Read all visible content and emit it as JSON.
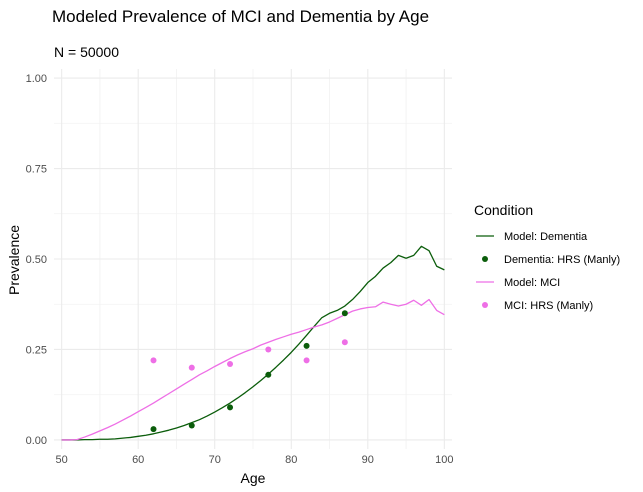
{
  "chart_data": {
    "type": "line",
    "title": "Modeled Prevalence of MCI and Dementia by Age",
    "subtitle": "N = 50000",
    "xlabel": "Age",
    "ylabel": "Prevalence",
    "xlim": [
      49,
      101
    ],
    "ylim": [
      -0.025,
      1.025
    ],
    "x_ticks": [
      50,
      60,
      70,
      80,
      90,
      100
    ],
    "y_ticks": [
      0.0,
      0.25,
      0.5,
      0.75,
      1.0
    ],
    "x_tick_labels": [
      "50",
      "60",
      "70",
      "80",
      "90",
      "100"
    ],
    "y_tick_labels": [
      "0.00",
      "0.25",
      "0.50",
      "0.75",
      "1.00"
    ],
    "grid": true,
    "legend": {
      "title": "Condition",
      "placement": "right",
      "entries": [
        {
          "label": "Model: Dementia",
          "kind": "line",
          "color": "#0b5d0b"
        },
        {
          "label": "Dementia: HRS (Manly)",
          "kind": "point",
          "color": "#0b5d0b"
        },
        {
          "label": "Model: MCI",
          "kind": "line",
          "color": "#ee6fe6"
        },
        {
          "label": "MCI: HRS (Manly)",
          "kind": "point",
          "color": "#ee6fe6"
        }
      ]
    },
    "series": [
      {
        "name": "Model: Dementia",
        "kind": "line",
        "color": "#0b5d0b",
        "x": [
          50,
          51,
          52,
          53,
          54,
          55,
          56,
          57,
          58,
          59,
          60,
          61,
          62,
          63,
          64,
          65,
          66,
          67,
          68,
          69,
          70,
          71,
          72,
          73,
          74,
          75,
          76,
          77,
          78,
          79,
          80,
          81,
          82,
          83,
          84,
          85,
          86,
          87,
          88,
          89,
          90,
          91,
          92,
          93,
          94,
          95,
          96,
          97,
          98,
          99,
          100
        ],
        "y": [
          0.0,
          0.0,
          0.0,
          0.001,
          0.001,
          0.002,
          0.002,
          0.003,
          0.005,
          0.007,
          0.01,
          0.013,
          0.017,
          0.022,
          0.027,
          0.033,
          0.04,
          0.048,
          0.056,
          0.066,
          0.077,
          0.089,
          0.102,
          0.116,
          0.131,
          0.147,
          0.164,
          0.182,
          0.201,
          0.221,
          0.242,
          0.265,
          0.289,
          0.314,
          0.338,
          0.35,
          0.358,
          0.37,
          0.388,
          0.41,
          0.435,
          0.452,
          0.475,
          0.49,
          0.51,
          0.502,
          0.51,
          0.535,
          0.523,
          0.48,
          0.47
        ]
      },
      {
        "name": "Dementia: HRS (Manly)",
        "kind": "point",
        "color": "#0b5d0b",
        "x": [
          62,
          67,
          72,
          77,
          82,
          87
        ],
        "y": [
          0.03,
          0.04,
          0.09,
          0.18,
          0.26,
          0.35
        ]
      },
      {
        "name": "Model: MCI",
        "kind": "line",
        "color": "#ee6fe6",
        "x": [
          50,
          51,
          52,
          53,
          54,
          55,
          56,
          57,
          58,
          59,
          60,
          61,
          62,
          63,
          64,
          65,
          66,
          67,
          68,
          69,
          70,
          71,
          72,
          73,
          74,
          75,
          76,
          77,
          78,
          79,
          80,
          81,
          82,
          83,
          84,
          85,
          86,
          87,
          88,
          89,
          90,
          91,
          92,
          93,
          94,
          95,
          96,
          97,
          98,
          99,
          100
        ],
        "y": [
          0.0,
          0.0,
          0.001,
          0.008,
          0.016,
          0.025,
          0.034,
          0.044,
          0.055,
          0.066,
          0.078,
          0.09,
          0.102,
          0.115,
          0.128,
          0.141,
          0.154,
          0.167,
          0.18,
          0.191,
          0.203,
          0.214,
          0.225,
          0.235,
          0.244,
          0.252,
          0.262,
          0.27,
          0.278,
          0.285,
          0.292,
          0.298,
          0.305,
          0.312,
          0.318,
          0.326,
          0.336,
          0.346,
          0.356,
          0.362,
          0.366,
          0.368,
          0.381,
          0.375,
          0.37,
          0.375,
          0.386,
          0.372,
          0.388,
          0.358,
          0.346
        ]
      },
      {
        "name": "MCI: HRS (Manly)",
        "kind": "point",
        "color": "#ee6fe6",
        "x": [
          62,
          67,
          72,
          77,
          82,
          87
        ],
        "y": [
          0.22,
          0.2,
          0.21,
          0.25,
          0.22,
          0.27
        ]
      }
    ]
  }
}
